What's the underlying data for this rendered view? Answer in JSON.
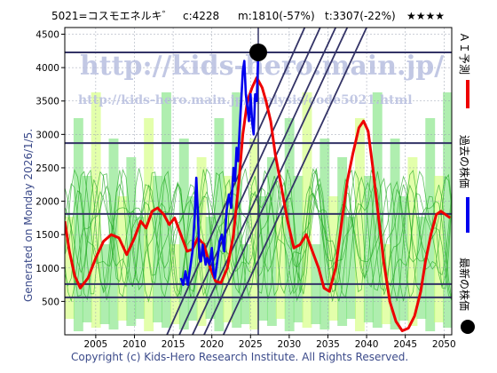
{
  "header": {
    "code_name": "5021=コスモエネルキ゛",
    "current": "c:4228",
    "min": "m:1810(-57%)",
    "target": "t:3307(-22%)",
    "stars": "★★★★"
  },
  "side_left": "Generated on Monday 2026/1/5.",
  "legend": {
    "ai_label": "ＡＩ予測",
    "past_label": "過去の株価",
    "latest_label": "最新の株価"
  },
  "watermark": {
    "main": "http://kids-hero.main.jp/",
    "sub": "http://kids-hero.main.jp/analysis/code5021.html"
  },
  "footer": "Copyright (c) Kids-Hero Research Institute. All Rights Reserved.",
  "colors": {
    "ai": "#ee0000",
    "past": "#0000ee",
    "band_green": "#6ee06e",
    "band_lime": "#ccff66",
    "lines": "#333366"
  },
  "chart_data": {
    "type": "line",
    "xlim": [
      2001,
      2051
    ],
    "ylim": [
      0,
      4600
    ],
    "x_ticks": [
      2005,
      2010,
      2015,
      2020,
      2025,
      2030,
      2035,
      2040,
      2045,
      2050
    ],
    "y_ticks": [
      500,
      1000,
      1500,
      2000,
      2500,
      3000,
      3500,
      4000,
      4500
    ],
    "horizontal_lines": [
      4228,
      2870,
      1810,
      760,
      560
    ],
    "current_marker": {
      "x": 2026.0,
      "y": 4228
    },
    "series": [
      {
        "name": "ＡＩ予測",
        "x": [
          2001,
          2001.6,
          2002.3,
          2003.0,
          2004.0,
          2005.0,
          2006.0,
          2007.0,
          2008.0,
          2009.0,
          2010.0,
          2010.8,
          2011.5,
          2012.3,
          2013.0,
          2013.8,
          2014.5,
          2015.2,
          2016.0,
          2016.8,
          2017.5,
          2018.2,
          2019.0,
          2019.8,
          2020.5,
          2021.2,
          2022.0,
          2022.8,
          2023.5,
          2024.0,
          2024.6,
          2025.2,
          2025.8,
          2026.5,
          2027.0,
          2027.6,
          2028.2,
          2029.0,
          2029.8,
          2030.6,
          2031.4,
          2032.2,
          2033.0,
          2033.8,
          2034.5,
          2035.2,
          2036.0,
          2036.8,
          2037.5,
          2038.2,
          2039.0,
          2039.6,
          2040.2,
          2040.8,
          2041.5,
          2042.2,
          2043.0,
          2043.8,
          2044.6,
          2045.4,
          2046.2,
          2047.0,
          2047.6,
          2048.3,
          2049.0,
          2049.6,
          2050.2,
          2050.8
        ],
        "y": [
          1700,
          1250,
          880,
          700,
          850,
          1150,
          1400,
          1500,
          1450,
          1200,
          1450,
          1700,
          1600,
          1850,
          1900,
          1800,
          1650,
          1750,
          1500,
          1250,
          1280,
          1450,
          1350,
          1000,
          800,
          780,
          1000,
          1500,
          2300,
          3000,
          3500,
          3700,
          3850,
          3700,
          3500,
          3200,
          2700,
          2200,
          1700,
          1300,
          1350,
          1500,
          1250,
          1000,
          700,
          650,
          1000,
          1700,
          2300,
          2700,
          3100,
          3200,
          3050,
          2500,
          1800,
          1100,
          500,
          200,
          60,
          100,
          280,
          650,
          1100,
          1500,
          1800,
          1850,
          1800,
          1750
        ]
      },
      {
        "name": "過去の株価",
        "x": [
          2016.0,
          2016.3,
          2016.6,
          2016.9,
          2017.2,
          2017.5,
          2017.8,
          2018.0,
          2018.2,
          2018.4,
          2018.6,
          2018.8,
          2019.0,
          2019.2,
          2019.4,
          2019.7,
          2020.0,
          2020.2,
          2020.4,
          2020.7,
          2021.0,
          2021.3,
          2021.6,
          2021.9,
          2022.2,
          2022.5,
          2022.8,
          2023.0,
          2023.2,
          2023.4,
          2023.6,
          2023.8,
          2024.0,
          2024.2,
          2024.4,
          2024.6,
          2024.8,
          2025.0,
          2025.2,
          2025.4,
          2025.6,
          2025.8,
          2026.0
        ],
        "y": [
          850,
          750,
          950,
          750,
          1000,
          1250,
          1800,
          2350,
          1800,
          1150,
          1100,
          1350,
          1200,
          1050,
          1150,
          1050,
          1300,
          950,
          850,
          1100,
          1400,
          1500,
          1250,
          1850,
          2100,
          1900,
          2500,
          2300,
          2800,
          2600,
          3100,
          3500,
          3950,
          4100,
          3600,
          3400,
          3200,
          3600,
          3200,
          3000,
          3600,
          3500,
          4228
        ]
      }
    ]
  }
}
